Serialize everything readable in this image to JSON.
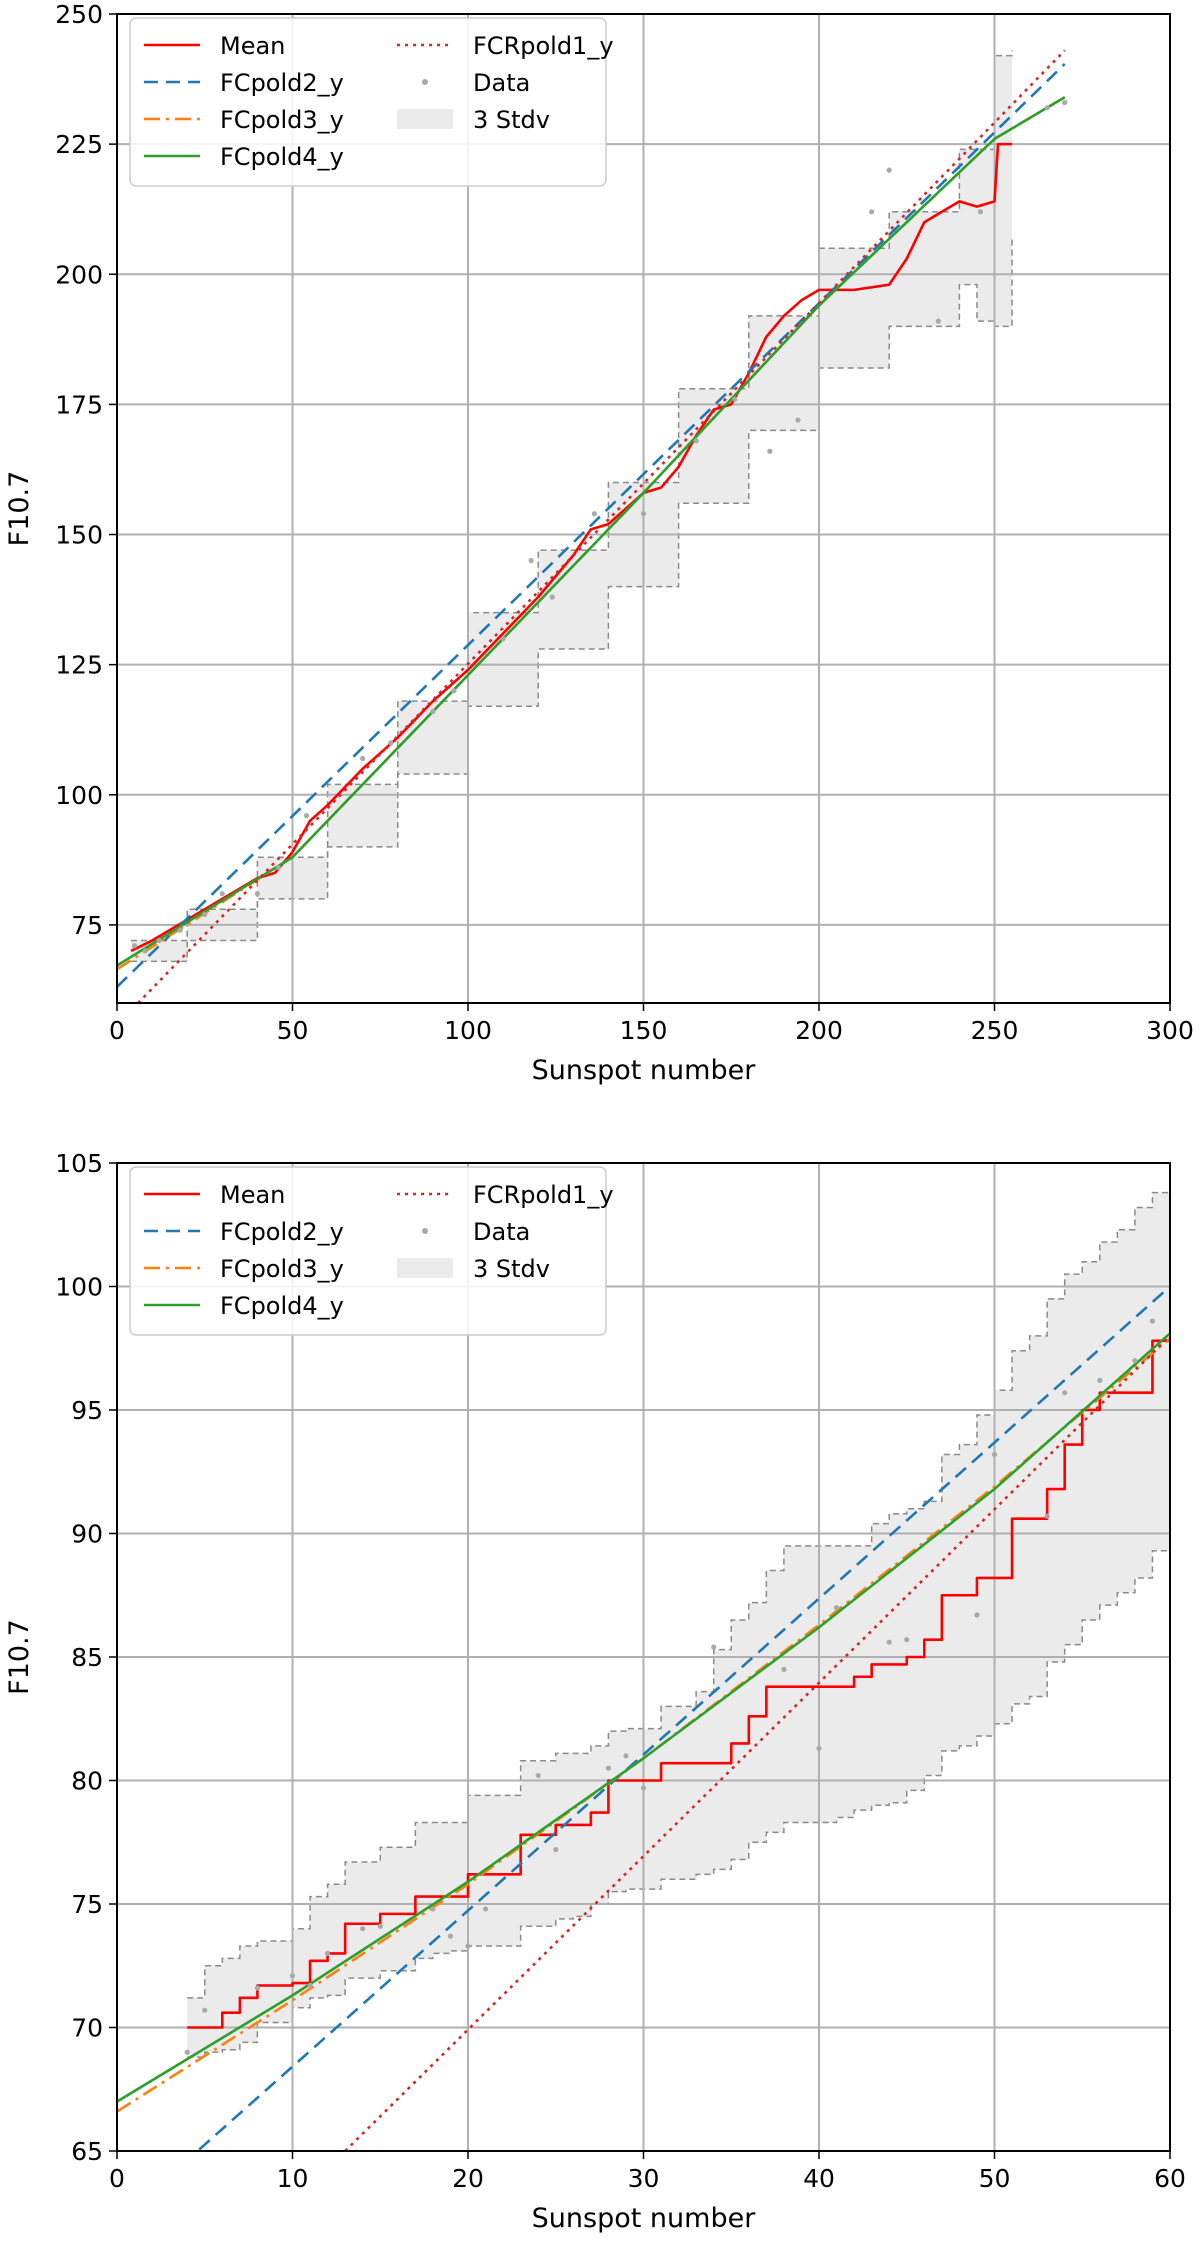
{
  "chart_data": [
    {
      "type": "line",
      "xlabel": "Sunspot number",
      "ylabel": "F10.7",
      "xlim": [
        0,
        300
      ],
      "ylim": [
        60,
        250
      ],
      "xticks": [
        0,
        50,
        100,
        150,
        200,
        250,
        300
      ],
      "yticks": [
        75,
        100,
        125,
        150,
        175,
        200,
        225,
        250
      ],
      "grid": true,
      "legend_position": "top-left",
      "legend": [
        "Mean",
        "FCpold2_y",
        "FCpold3_y",
        "FCpold4_y",
        "FCRpold1_y",
        "Data",
        "3 Stdv"
      ],
      "colors": {
        "Mean": "#ff0000",
        "FCpold2_y": "#1f77b4",
        "FCpold3_y": "#ff7f0e",
        "FCpold4_y": "#2ca02c",
        "FCRpold1_y": "#d62728",
        "Data": "#a9a9a9",
        "3 Stdv": "#ebebeb"
      },
      "series": [
        {
          "name": "Mean",
          "style": "solid",
          "x": [
            4,
            10,
            20,
            30,
            35,
            40,
            45,
            50,
            55,
            60,
            70,
            80,
            90,
            100,
            110,
            120,
            130,
            135,
            140,
            150,
            155,
            160,
            165,
            170,
            175,
            180,
            185,
            190,
            195,
            200,
            210,
            220,
            225,
            230,
            235,
            240,
            245,
            250,
            251,
            255
          ],
          "y": [
            70,
            72,
            76,
            80,
            82,
            84,
            85,
            89,
            95,
            98,
            105,
            111,
            118,
            124,
            131,
            138,
            146,
            151,
            152,
            158,
            159,
            163,
            169,
            174,
            175,
            181,
            188,
            192,
            195,
            197,
            197,
            198,
            203,
            210,
            212,
            214,
            213,
            214,
            225,
            225
          ]
        },
        {
          "name": "FCpold2_y",
          "style": "dashed",
          "x": [
            0,
            270
          ],
          "y": [
            63.1,
            240.4
          ]
        },
        {
          "name": "FCpold3_y",
          "style": "dashdot",
          "x": [
            0,
            50,
            100,
            150,
            200,
            250,
            270
          ],
          "y": [
            66.5,
            88,
            123,
            158,
            194,
            226,
            234
          ]
        },
        {
          "name": "FCpold4_y",
          "style": "solid",
          "x": [
            0,
            50,
            100,
            150,
            200,
            250,
            270
          ],
          "y": [
            67.2,
            88,
            123,
            158,
            194,
            226,
            234
          ]
        },
        {
          "name": "FCRpold1_y",
          "style": "dotted",
          "x": [
            6,
            270
          ],
          "y": [
            60,
            243
          ]
        },
        {
          "name": "3 Stdv upper",
          "style": "band",
          "x": [
            4,
            20,
            40,
            60,
            80,
            100,
            120,
            140,
            160,
            180,
            200,
            220,
            240,
            250,
            255
          ],
          "y": [
            72,
            78,
            88,
            102,
            118,
            135,
            147,
            160,
            178,
            192,
            205,
            212,
            224,
            242,
            243
          ]
        },
        {
          "name": "3 Stdv lower",
          "style": "band",
          "x": [
            4,
            20,
            40,
            60,
            80,
            100,
            120,
            140,
            160,
            180,
            200,
            220,
            240,
            245,
            250,
            255
          ],
          "y": [
            68,
            72,
            80,
            90,
            104,
            117,
            128,
            140,
            156,
            170,
            182,
            190,
            198,
            191,
            190,
            207
          ]
        },
        {
          "name": "Data",
          "style": "scatter",
          "x": [
            5,
            8,
            12,
            18,
            25,
            30,
            40,
            46,
            54,
            70,
            78,
            90,
            96,
            110,
            118,
            124,
            136,
            150,
            165,
            176,
            186,
            194,
            215,
            220,
            234,
            246,
            265,
            270
          ],
          "y": [
            71,
            70,
            72,
            74,
            77,
            81,
            81,
            86,
            96,
            107,
            110,
            116,
            120,
            130,
            145,
            138,
            154,
            154,
            168,
            176,
            166,
            172,
            212,
            220,
            191,
            212,
            232,
            233
          ]
        }
      ]
    },
    {
      "type": "line",
      "xlabel": "Sunspot number",
      "ylabel": "F10.7",
      "xlim": [
        0,
        60
      ],
      "ylim": [
        65,
        105
      ],
      "xticks": [
        0,
        10,
        20,
        30,
        40,
        50,
        60
      ],
      "yticks": [
        65,
        70,
        75,
        80,
        85,
        90,
        95,
        100,
        105
      ],
      "grid": true,
      "legend_position": "top-left",
      "legend": [
        "Mean",
        "FCpold2_y",
        "FCpold3_y",
        "FCpold4_y",
        "FCRpold1_y",
        "Data",
        "3 Stdv"
      ],
      "colors": {
        "Mean": "#ff0000",
        "FCpold2_y": "#1f77b4",
        "FCpold3_y": "#ff7f0e",
        "FCpold4_y": "#2ca02c",
        "FCRpold1_y": "#d62728",
        "Data": "#a9a9a9",
        "3 Stdv": "#ebebeb"
      },
      "series": [
        {
          "name": "Mean",
          "style": "step",
          "x": [
            4,
            5,
            6,
            7,
            8,
            9,
            10,
            11,
            12,
            13,
            14,
            15,
            16,
            17,
            18,
            19,
            20,
            21,
            22,
            23,
            24,
            25,
            26,
            27,
            28,
            29,
            30,
            31,
            32,
            33,
            34,
            35,
            36,
            37,
            38,
            39,
            40,
            41,
            42,
            43,
            44,
            45,
            46,
            47,
            48,
            49,
            50,
            51,
            52,
            53,
            54,
            55,
            56,
            57,
            58,
            59,
            60
          ],
          "y": [
            70,
            70,
            70.6,
            71.2,
            71.7,
            71.7,
            71.8,
            72.7,
            73,
            74.2,
            74.2,
            74.6,
            74.6,
            75.3,
            75.3,
            75.3,
            76.2,
            76.2,
            76.2,
            77.8,
            77.8,
            78.2,
            78.2,
            78.7,
            80,
            80,
            80,
            80.7,
            80.7,
            80.7,
            80.7,
            81.5,
            82.6,
            83.8,
            83.8,
            83.8,
            83.8,
            83.8,
            84.2,
            84.7,
            84.7,
            85,
            85.7,
            87.5,
            87.5,
            88.2,
            88.2,
            90.6,
            90.6,
            91.8,
            93.6,
            95,
            95.7,
            95.7,
            95.7,
            97.8,
            97.8
          ]
        },
        {
          "name": "FCpold2_y",
          "style": "dashed",
          "x": [
            0,
            60
          ],
          "y": [
            62.1,
            100
          ]
        },
        {
          "name": "FCpold3_y",
          "style": "dashdot",
          "x": [
            0,
            10,
            20,
            30,
            40,
            50,
            60
          ],
          "y": [
            66.6,
            71.1,
            75.8,
            80.9,
            86.3,
            91.9,
            97.9
          ]
        },
        {
          "name": "FCpold4_y",
          "style": "solid",
          "x": [
            0,
            10,
            20,
            30,
            40,
            50,
            60
          ],
          "y": [
            67,
            71.3,
            75.9,
            80.9,
            86.2,
            91.8,
            98.1
          ]
        },
        {
          "name": "FCRpold1_y",
          "style": "dotted",
          "x": [
            13,
            60
          ],
          "y": [
            65,
            98
          ]
        },
        {
          "name": "3 Stdv upper",
          "style": "band",
          "x": [
            4,
            5,
            6,
            7,
            8,
            9,
            10,
            11,
            12,
            13,
            14,
            15,
            16,
            17,
            18,
            19,
            20,
            21,
            22,
            23,
            24,
            25,
            26,
            27,
            28,
            29,
            30,
            31,
            32,
            33,
            34,
            35,
            36,
            37,
            38,
            39,
            40,
            41,
            42,
            43,
            44,
            45,
            46,
            47,
            48,
            49,
            50,
            51,
            52,
            53,
            54,
            55,
            56,
            57,
            58,
            59,
            60
          ],
          "y": [
            71.2,
            72.5,
            72.8,
            73.3,
            73.5,
            73.5,
            74,
            75.3,
            75.8,
            76.7,
            76.7,
            77.3,
            77.3,
            78.3,
            78.3,
            78.3,
            79.4,
            79.4,
            79.4,
            80.8,
            80.8,
            81.1,
            81.1,
            81.4,
            82,
            82.1,
            82.1,
            83,
            83,
            83.6,
            85.3,
            86.5,
            87.2,
            88.5,
            89.5,
            89.5,
            89.5,
            89.5,
            89.5,
            90.4,
            90.8,
            91,
            91.3,
            93.2,
            93.6,
            94.8,
            95.8,
            97.4,
            98,
            99.5,
            100.5,
            101,
            101.8,
            102.3,
            103.2,
            103.8,
            105
          ]
        },
        {
          "name": "3 Stdv lower",
          "style": "band",
          "x": [
            4,
            5,
            6,
            7,
            8,
            9,
            10,
            11,
            12,
            13,
            14,
            15,
            16,
            17,
            18,
            19,
            20,
            21,
            22,
            23,
            24,
            25,
            26,
            27,
            28,
            29,
            30,
            31,
            32,
            33,
            34,
            35,
            36,
            37,
            38,
            39,
            40,
            41,
            42,
            43,
            44,
            45,
            46,
            47,
            48,
            49,
            50,
            51,
            52,
            53,
            54,
            55,
            56,
            57,
            58,
            59,
            60
          ],
          "y": [
            68.8,
            69,
            69.1,
            69.4,
            70.2,
            70.2,
            70.8,
            71.2,
            71.3,
            72,
            72,
            72.3,
            72.3,
            72.8,
            73,
            73.1,
            73.3,
            73.3,
            73.3,
            74.1,
            74.1,
            74.4,
            74.5,
            75,
            75.5,
            75.6,
            75.6,
            76,
            76,
            76.2,
            76.4,
            76.8,
            77.5,
            77.9,
            78.3,
            78.3,
            78.3,
            78.5,
            78.8,
            79,
            79.1,
            79.6,
            80.2,
            81.2,
            81.4,
            81.8,
            82.3,
            83.1,
            83.4,
            84.8,
            85.5,
            86.5,
            87.1,
            87.6,
            88.2,
            89.3,
            89.4
          ]
        },
        {
          "name": "Data",
          "style": "scatter",
          "x": [
            4,
            5,
            8,
            10,
            11,
            12,
            14,
            15,
            18,
            19,
            20,
            21,
            24,
            25,
            28,
            29,
            30,
            34,
            38,
            40,
            41,
            44,
            45,
            49,
            50,
            53,
            54,
            56,
            58,
            59
          ],
          "y": [
            69,
            70.7,
            71.6,
            72.1,
            71.7,
            73,
            74,
            74.1,
            74.8,
            73.7,
            73.3,
            74.8,
            80.2,
            77.2,
            80.5,
            81,
            79.7,
            85.4,
            84.5,
            81.3,
            87,
            85.6,
            85.7,
            86.7,
            93.2,
            90.7,
            95.7,
            96.2,
            97,
            98.6
          ]
        }
      ]
    }
  ]
}
